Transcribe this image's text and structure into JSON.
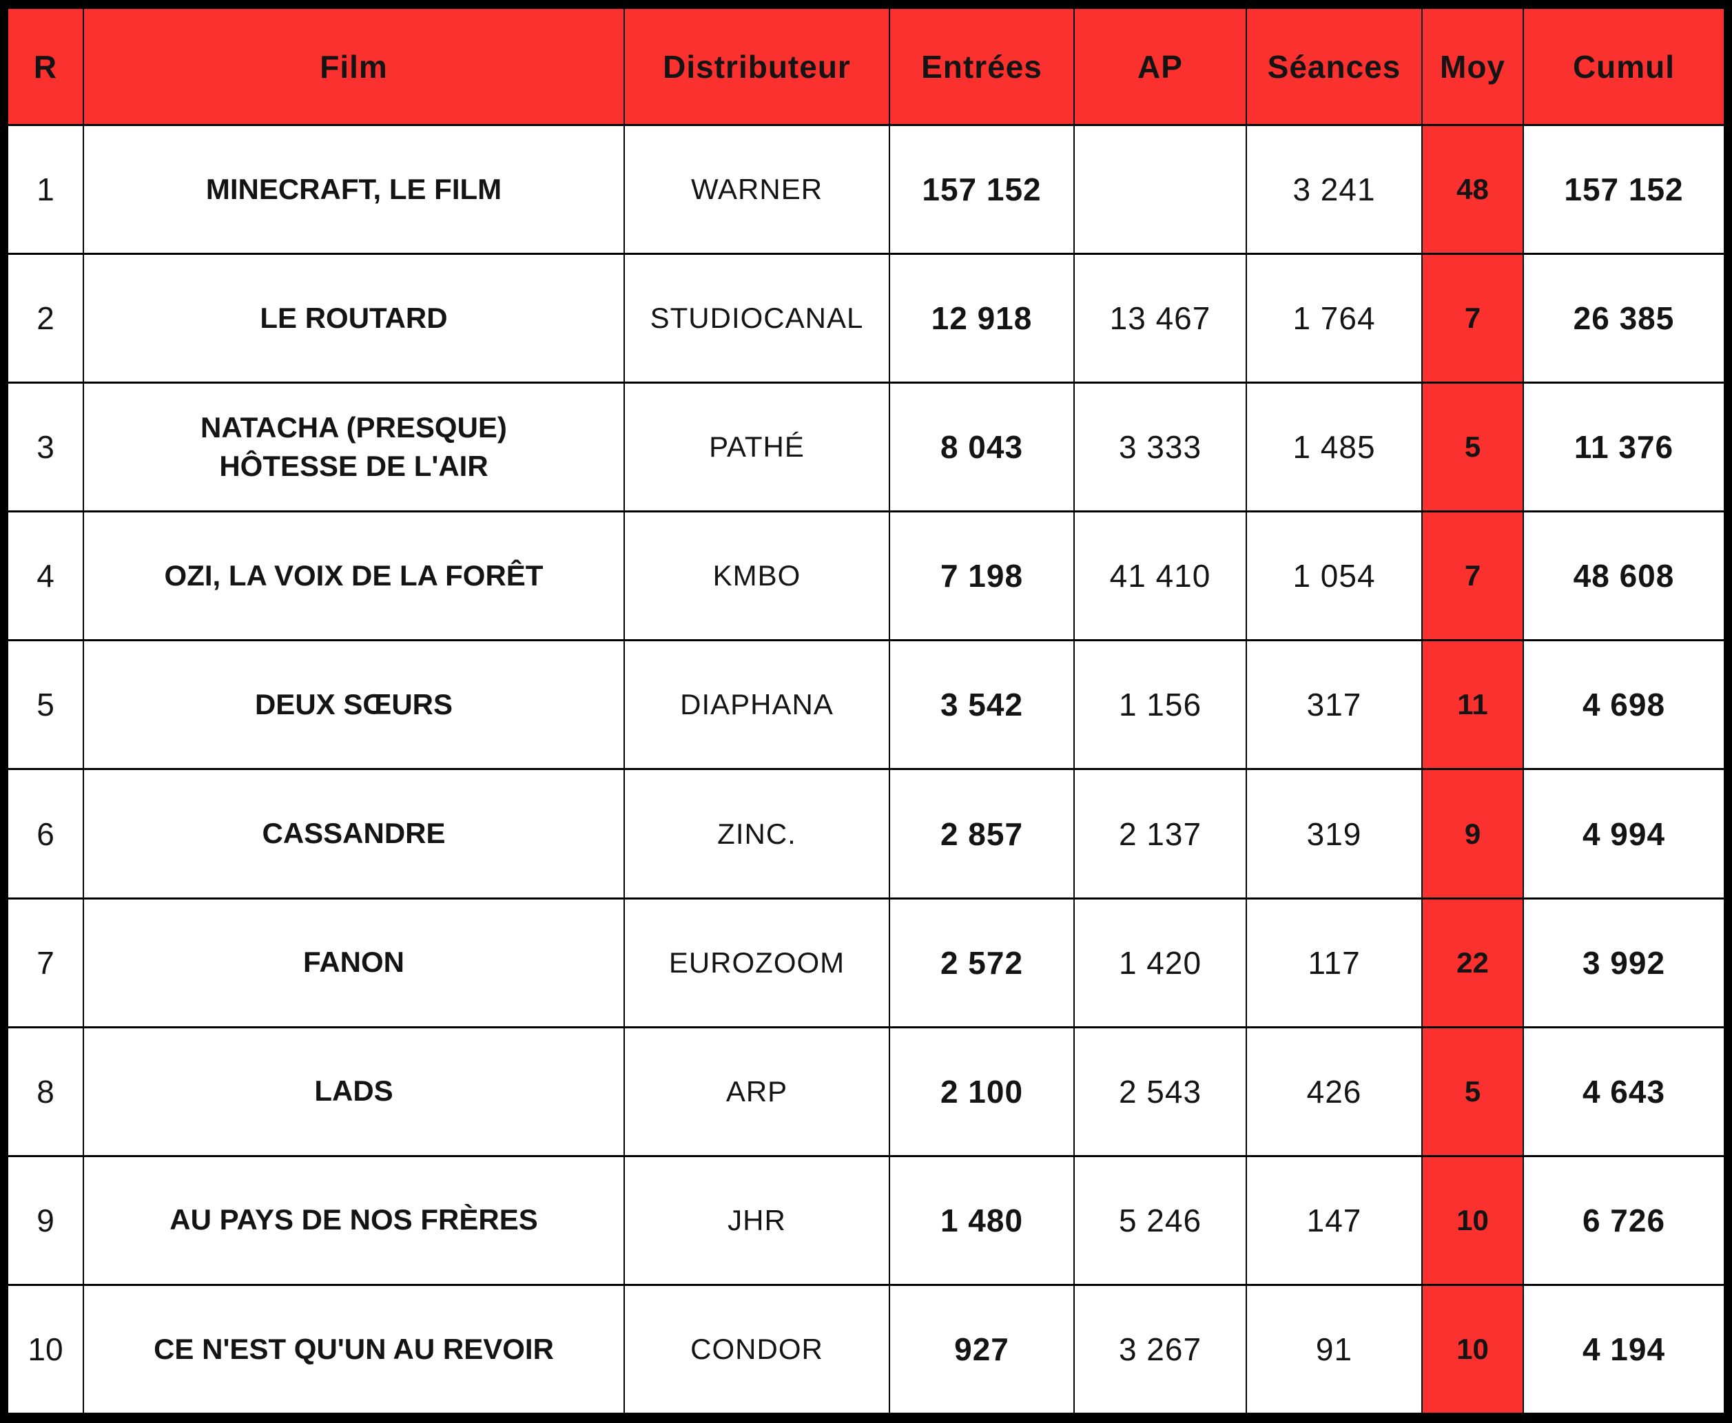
{
  "colors": {
    "accent_red": "#FA312E",
    "grid_black": "#000000",
    "body_text": "#141414",
    "header_text": "#FFFFFF"
  },
  "chart_data": {
    "type": "table",
    "columns": [
      "R",
      "Film",
      "Distributeur",
      "Entrées",
      "AP",
      "Séances",
      "Moy",
      "Cumul"
    ],
    "rows": [
      {
        "r": "1",
        "film": "MINECRAFT, LE FILM",
        "distributeur": "WARNER",
        "entrees": "157 152",
        "ap": "",
        "seances": "3 241",
        "moy": "48",
        "cumul": "157 152"
      },
      {
        "r": "2",
        "film": "LE ROUTARD",
        "distributeur": "STUDIOCANAL",
        "entrees": "12 918",
        "ap": "13 467",
        "seances": "1 764",
        "moy": "7",
        "cumul": "26 385"
      },
      {
        "r": "3",
        "film": "NATACHA (PRESQUE) HÔTESSE DE L'AIR",
        "distributeur": "PATHÉ",
        "entrees": "8 043",
        "ap": "3 333",
        "seances": "1 485",
        "moy": "5",
        "cumul": "11 376"
      },
      {
        "r": "4",
        "film": "OZI, LA VOIX DE LA FORÊT",
        "distributeur": "KMBO",
        "entrees": "7 198",
        "ap": "41 410",
        "seances": "1 054",
        "moy": "7",
        "cumul": "48 608"
      },
      {
        "r": "5",
        "film": "DEUX SŒURS",
        "distributeur": "DIAPHANA",
        "entrees": "3 542",
        "ap": "1 156",
        "seances": "317",
        "moy": "11",
        "cumul": "4 698"
      },
      {
        "r": "6",
        "film": "CASSANDRE",
        "distributeur": "ZINC.",
        "entrees": "2 857",
        "ap": "2 137",
        "seances": "319",
        "moy": "9",
        "cumul": "4 994"
      },
      {
        "r": "7",
        "film": "FANON",
        "distributeur": "EUROZOOM",
        "entrees": "2 572",
        "ap": "1 420",
        "seances": "117",
        "moy": "22",
        "cumul": "3 992"
      },
      {
        "r": "8",
        "film": "LADS",
        "distributeur": "ARP",
        "entrees": "2 100",
        "ap": "2 543",
        "seances": "426",
        "moy": "5",
        "cumul": "4 643"
      },
      {
        "r": "9",
        "film": "AU PAYS DE NOS FRÈRES",
        "distributeur": "JHR",
        "entrees": "1 480",
        "ap": "5 246",
        "seances": "147",
        "moy": "10",
        "cumul": "6 726"
      },
      {
        "r": "10",
        "film": "CE N'EST QU'UN AU REVOIR",
        "distributeur": "CONDOR",
        "entrees": "927",
        "ap": "3 267",
        "seances": "91",
        "moy": "10",
        "cumul": "4 194"
      }
    ]
  }
}
